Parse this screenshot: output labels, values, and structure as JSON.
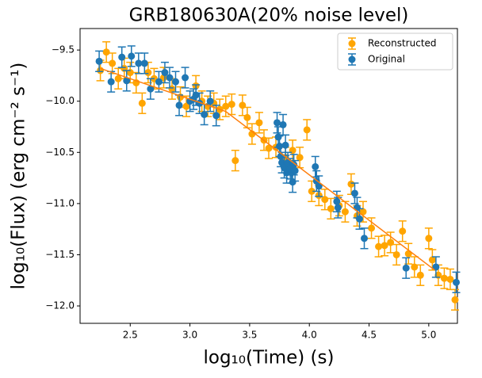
{
  "chart_data": {
    "type": "scatter",
    "title": "GRB180630A(20% noise level)",
    "x_label": "log₁₀(Time) (s)",
    "y_label": "log₁₀(Flux) (erg cm⁻² s⁻¹)",
    "xlim": [
      2.08,
      5.24
    ],
    "ylim": [
      -12.17,
      -9.29
    ],
    "xticks": [
      {
        "value": 2.5,
        "label": "2.5"
      },
      {
        "value": 3,
        "label": "3.0"
      },
      {
        "value": 3.5,
        "label": "3.5"
      },
      {
        "value": 4,
        "label": "4.0"
      },
      {
        "value": 4.5,
        "label": "4.5"
      },
      {
        "value": 5,
        "label": "5.0"
      }
    ],
    "yticks": [
      {
        "value": -9.5,
        "label": "−9.5"
      },
      {
        "value": -10,
        "label": "−10.0"
      },
      {
        "value": -10.5,
        "label": "−10.5"
      },
      {
        "value": -11,
        "label": "−11.0"
      },
      {
        "value": -11.5,
        "label": "−11.5"
      },
      {
        "value": -12,
        "label": "−12.0"
      }
    ],
    "legend": "upper right",
    "series": [
      {
        "name": "Reconstructed",
        "color": "#ffa500",
        "yerr": 0.1,
        "x": [
          2.25,
          2.3,
          2.35,
          2.4,
          2.45,
          2.5,
          2.55,
          2.6,
          2.65,
          2.7,
          2.78,
          2.85,
          2.92,
          2.97,
          3.05,
          3.1,
          3.15,
          3.2,
          3.25,
          3.3,
          3.35,
          3.38,
          3.44,
          3.48,
          3.52,
          3.58,
          3.62,
          3.66,
          3.72,
          3.8,
          3.86,
          3.92,
          3.98,
          4.02,
          4.08,
          4.13,
          4.18,
          4.25,
          4.3,
          4.35,
          4.4,
          4.45,
          4.52,
          4.58,
          4.63,
          4.68,
          4.73,
          4.78,
          4.83,
          4.88,
          4.93,
          5.0,
          5.03,
          5.08,
          5.13,
          5.18,
          5.22
        ],
        "values": [
          -9.7,
          -9.52,
          -9.63,
          -9.78,
          -9.68,
          -9.72,
          -9.82,
          -10.02,
          -9.72,
          -9.78,
          -9.77,
          -9.88,
          -9.96,
          -10.05,
          -9.85,
          -10.0,
          -10.05,
          -10.02,
          -10.08,
          -10.05,
          -10.03,
          -10.58,
          -10.04,
          -10.16,
          -10.32,
          -10.21,
          -10.38,
          -10.46,
          -10.45,
          -10.55,
          -10.48,
          -10.55,
          -10.28,
          -10.88,
          -10.92,
          -10.96,
          -11.05,
          -11.02,
          -11.08,
          -10.81,
          -11.12,
          -11.08,
          -11.24,
          -11.42,
          -11.41,
          -11.38,
          -11.5,
          -11.27,
          -11.49,
          -11.62,
          -11.7,
          -11.34,
          -11.55,
          -11.7,
          -11.73,
          -11.74,
          -11.94
        ]
      },
      {
        "name": "Original",
        "color": "#1f77b4",
        "yerr": 0.1,
        "x": [
          2.24,
          2.34,
          2.43,
          2.47,
          2.51,
          2.57,
          2.62,
          2.67,
          2.74,
          2.79,
          2.83,
          2.88,
          2.91,
          2.96,
          3.0,
          3.03,
          3.05,
          3.08,
          3.12,
          3.17,
          3.22,
          3.73,
          3.74,
          3.75,
          3.76,
          3.77,
          3.78,
          3.79,
          3.8,
          3.81,
          3.82,
          3.84,
          3.85,
          3.86,
          3.87,
          3.88,
          4.05,
          4.06,
          4.08,
          4.23,
          4.24,
          4.38,
          4.4,
          4.42,
          4.46,
          4.81,
          5.06,
          5.23
        ],
        "values": [
          -9.61,
          -9.81,
          -9.57,
          -9.8,
          -9.56,
          -9.63,
          -9.63,
          -9.88,
          -9.81,
          -9.72,
          -9.77,
          -9.81,
          -10.04,
          -9.77,
          -10.0,
          -9.98,
          -9.94,
          -10.02,
          -10.13,
          -10.0,
          -10.14,
          -10.21,
          -10.35,
          -10.44,
          -10.54,
          -10.6,
          -10.23,
          -10.65,
          -10.43,
          -10.7,
          -10.6,
          -10.66,
          -10.7,
          -10.79,
          -10.62,
          -10.68,
          -10.64,
          -10.78,
          -10.83,
          -10.98,
          -11.04,
          -10.9,
          -11.04,
          -11.15,
          -11.34,
          -11.63,
          -11.62,
          -11.77
        ]
      }
    ],
    "fit_line": {
      "color": "#ff7f0e",
      "x": [
        2.25,
        3.3,
        5.05
      ],
      "values": [
        -9.68,
        -10.1,
        -11.65
      ]
    }
  }
}
